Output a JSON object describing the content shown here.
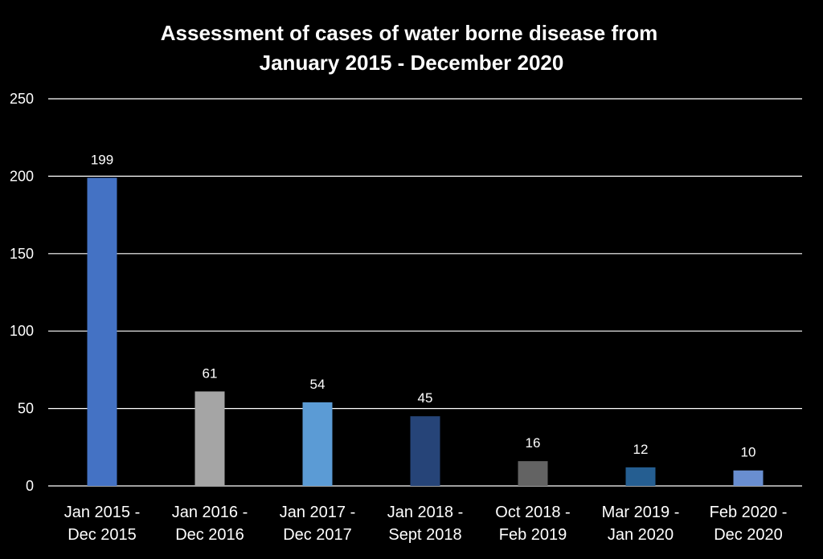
{
  "chart_data": {
    "type": "bar",
    "title_lines": [
      "Assessment of cases of water borne disease from",
      "January 2015 - December 2020"
    ],
    "categories": [
      [
        "Jan 2015 -",
        "Dec 2015"
      ],
      [
        "Jan 2016 -",
        "Dec 2016"
      ],
      [
        "Jan 2017 -",
        "Dec 2017"
      ],
      [
        "Jan 2018 -",
        "Sept 2018"
      ],
      [
        "Oct 2018 -",
        "Feb 2019"
      ],
      [
        "Mar 2019 -",
        "Jan 2020"
      ],
      [
        "Feb 2020 -",
        "Dec 2020"
      ]
    ],
    "values": [
      199,
      61,
      54,
      45,
      16,
      12,
      10
    ],
    "bar_colors": [
      "#4472c4",
      "#a5a5a5",
      "#5b9bd5",
      "#264478",
      "#636363",
      "#255e91",
      "#698ed0"
    ],
    "ylim": [
      0,
      250
    ],
    "yticks": [
      0,
      50,
      100,
      150,
      200,
      250
    ],
    "grid": true,
    "legend": "none",
    "background": "#000000",
    "text_color": "#ffffff"
  }
}
